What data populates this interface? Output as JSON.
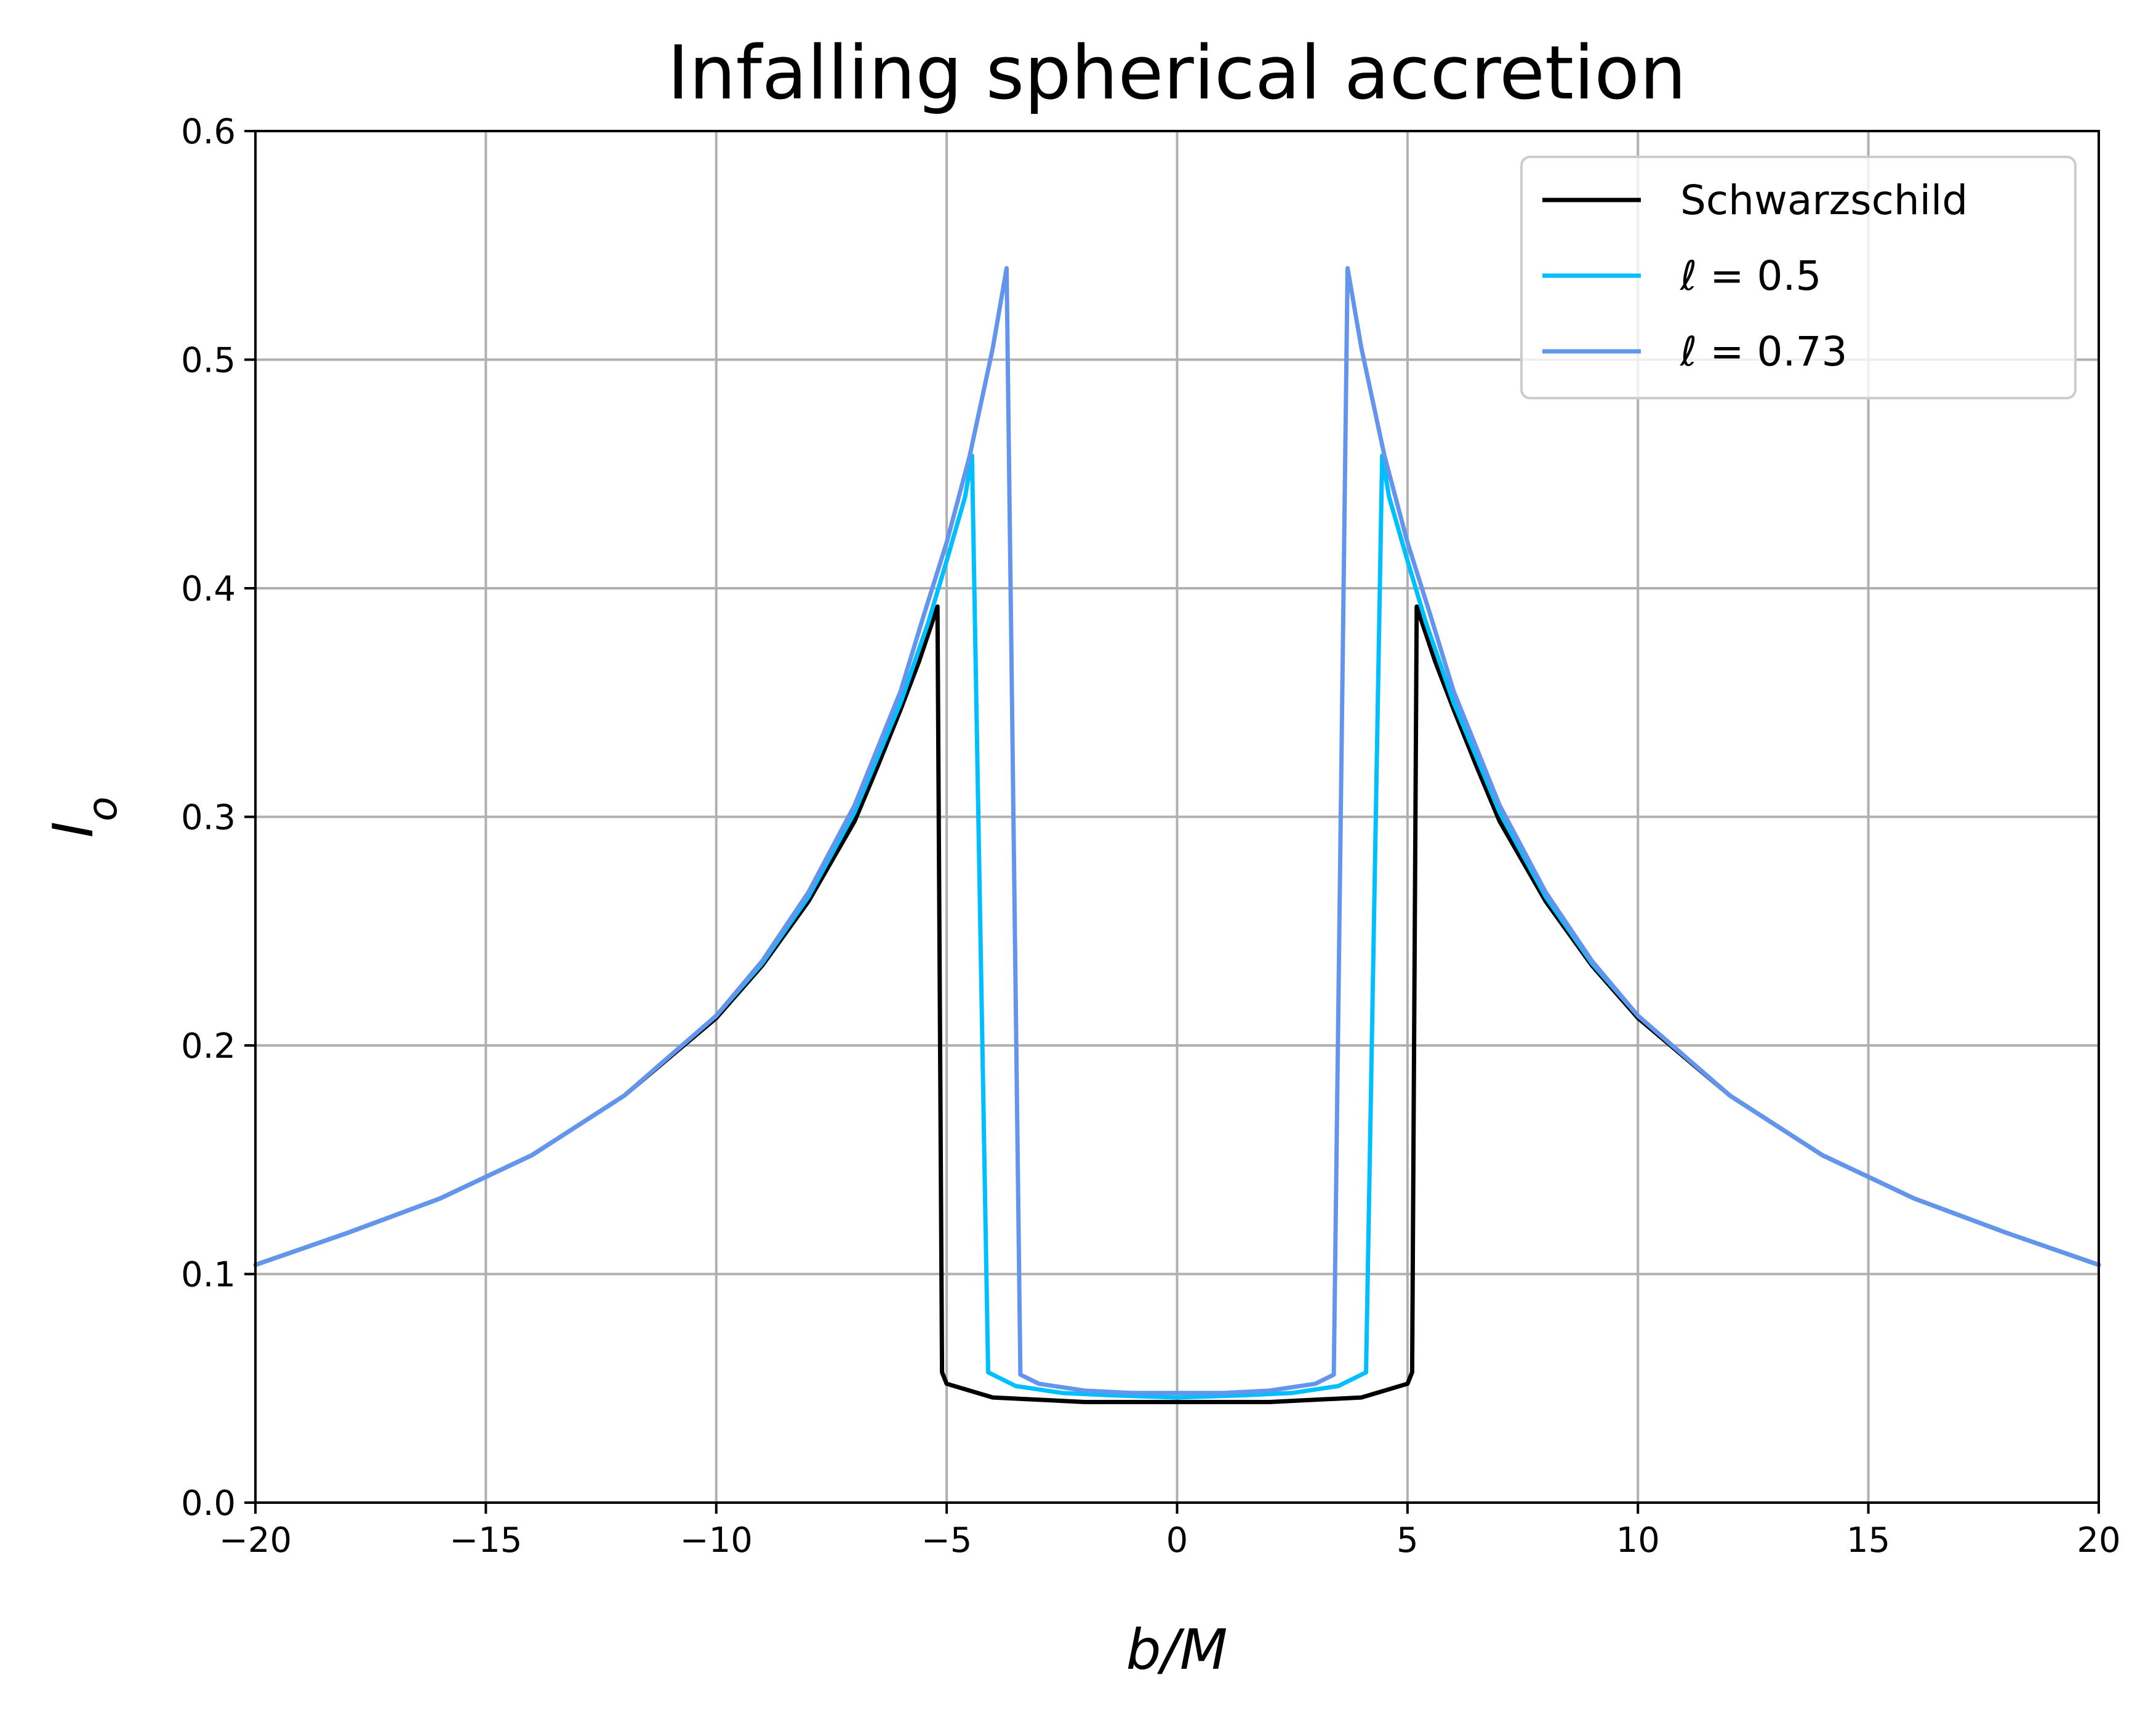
{
  "chart_data": {
    "type": "line",
    "title": "Infalling spherical accretion",
    "xlabel": "b/M",
    "ylabel": "I_o",
    "xlim": [
      -20,
      20
    ],
    "ylim": [
      0,
      0.6
    ],
    "grid": true,
    "legend_position": "top-right",
    "x_ticks": [
      -20,
      -15,
      -10,
      -5,
      0,
      5,
      10,
      15,
      20
    ],
    "x_tick_labels": [
      "−20",
      "−15",
      "−10",
      "−5",
      "0",
      "5",
      "10",
      "15",
      "20"
    ],
    "y_ticks": [
      0.0,
      0.1,
      0.2,
      0.3,
      0.4,
      0.5,
      0.6
    ],
    "y_tick_labels": [
      "0.0",
      "0.1",
      "0.2",
      "0.3",
      "0.4",
      "0.5",
      "0.6"
    ],
    "series": [
      {
        "name": "Schwarzschild",
        "legend_label": "Schwarzschild",
        "color": "#000000",
        "x": [
          -20,
          -18,
          -16,
          -14,
          -12,
          -10,
          -9,
          -8,
          -7,
          -6.5,
          -6,
          -5.6,
          -5.2,
          -5.1,
          -5.0,
          -4.0,
          -3.0,
          -2.0,
          -1.0,
          0.0,
          1.0,
          2.0,
          3.0,
          4.0,
          5.0,
          5.1,
          5.2,
          5.6,
          6.0,
          6.5,
          7,
          8,
          9,
          10,
          12,
          14,
          16,
          18,
          20
        ],
        "y": [
          0.104,
          0.118,
          0.133,
          0.152,
          0.178,
          0.212,
          0.235,
          0.263,
          0.298,
          0.322,
          0.347,
          0.368,
          0.392,
          0.057,
          0.052,
          0.046,
          0.045,
          0.044,
          0.044,
          0.044,
          0.044,
          0.044,
          0.045,
          0.046,
          0.052,
          0.057,
          0.392,
          0.368,
          0.347,
          0.322,
          0.298,
          0.263,
          0.235,
          0.212,
          0.178,
          0.152,
          0.133,
          0.118,
          0.104
        ]
      },
      {
        "name": "ℓ = 0.5",
        "legend_label": "ℓ = 0.5",
        "color": "#00bfff",
        "x": [
          -20,
          -18,
          -16,
          -14,
          -12,
          -10,
          -9,
          -8,
          -7,
          -6,
          -5.4,
          -5.0,
          -4.6,
          -4.45,
          -4.1,
          -3.5,
          -2.5,
          -1.5,
          0.0,
          1.5,
          2.5,
          3.5,
          4.1,
          4.45,
          4.6,
          5.0,
          5.4,
          6,
          7,
          8,
          9,
          10,
          12,
          14,
          16,
          18,
          20
        ],
        "y": [
          0.104,
          0.118,
          0.133,
          0.152,
          0.178,
          0.213,
          0.236,
          0.265,
          0.302,
          0.35,
          0.385,
          0.412,
          0.44,
          0.458,
          0.057,
          0.051,
          0.048,
          0.047,
          0.046,
          0.047,
          0.048,
          0.051,
          0.057,
          0.458,
          0.44,
          0.412,
          0.385,
          0.35,
          0.302,
          0.265,
          0.236,
          0.213,
          0.178,
          0.152,
          0.133,
          0.118,
          0.104
        ]
      },
      {
        "name": "ℓ = 0.73",
        "legend_label": "ℓ = 0.73",
        "color": "#6495ed",
        "x": [
          -20,
          -18,
          -16,
          -14,
          -12,
          -10,
          -9,
          -8,
          -7,
          -6,
          -5.5,
          -5.0,
          -4.5,
          -4.0,
          -3.7,
          -3.4,
          -3.0,
          -2.0,
          -1.0,
          0.0,
          1.0,
          2.0,
          3.0,
          3.4,
          3.7,
          4.0,
          4.5,
          5.0,
          5.5,
          6,
          7,
          8,
          9,
          10,
          12,
          14,
          16,
          18,
          20
        ],
        "y": [
          0.104,
          0.118,
          0.133,
          0.152,
          0.178,
          0.213,
          0.237,
          0.267,
          0.305,
          0.355,
          0.388,
          0.42,
          0.458,
          0.505,
          0.54,
          0.056,
          0.052,
          0.049,
          0.048,
          0.048,
          0.048,
          0.049,
          0.052,
          0.056,
          0.54,
          0.505,
          0.458,
          0.42,
          0.388,
          0.355,
          0.305,
          0.267,
          0.237,
          0.213,
          0.178,
          0.152,
          0.133,
          0.118,
          0.104
        ]
      }
    ]
  }
}
